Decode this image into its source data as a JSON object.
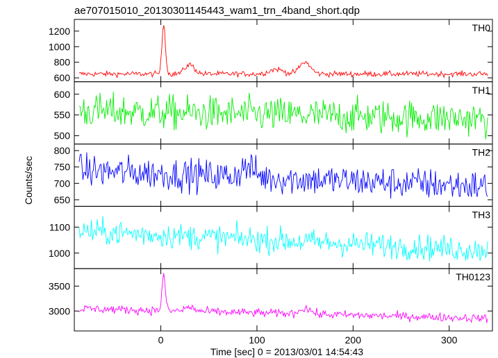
{
  "title": "ae707015010_20130301145443_wam1_trn_4band_short.qdp",
  "ylabel": "Counts/sec",
  "xlabel": "Time [sec] 0 = 2013/03/01 14:54:43",
  "colors": {
    "TH0": "#ff0000",
    "TH1": "#00ee00",
    "TH2": "#0000ff",
    "TH3": "#00ffff",
    "TH0123": "#ff00ff"
  },
  "chart_data": {
    "type": "line",
    "xlim": [
      -90,
      345
    ],
    "x_ticks": [
      0,
      100,
      200,
      300
    ],
    "x_tick_labels": [
      "0",
      "100",
      "200",
      "300"
    ],
    "legend": "top-right",
    "grid": false,
    "panels": [
      {
        "name": "TH0",
        "ylim": [
          550,
          1350
        ],
        "y_ticks": [
          600,
          800,
          1000,
          1200
        ],
        "y_tick_labels": [
          "600",
          "800",
          "1000",
          "1200"
        ],
        "baseline": 650,
        "noise": 25,
        "features": [
          {
            "center": 3,
            "width": 2.5,
            "amp": 650
          },
          {
            "center": 30,
            "width": 7,
            "amp": 120
          },
          {
            "center": 120,
            "width": 10,
            "amp": 60
          },
          {
            "center": 150,
            "width": 8,
            "amp": 150
          }
        ],
        "trend": 0,
        "series": [
          {
            "name": "TH0",
            "color_key": "TH0"
          }
        ]
      },
      {
        "name": "TH1",
        "ylim": [
          480,
          630
        ],
        "y_ticks": [
          500,
          550,
          600
        ],
        "y_tick_labels": [
          "500",
          "550",
          "600"
        ],
        "baseline": 560,
        "noise": 30,
        "features": [],
        "trend": -20,
        "series": [
          {
            "name": "TH1",
            "color_key": "TH1"
          }
        ]
      },
      {
        "name": "TH2",
        "ylim": [
          630,
          820
        ],
        "y_ticks": [
          650,
          700,
          750,
          800
        ],
        "y_tick_labels": [
          "650",
          "700",
          "750",
          "800"
        ],
        "baseline": 740,
        "noise": 35,
        "features": [
          {
            "center": 90,
            "width": 10,
            "amp": 30
          }
        ],
        "trend": -50,
        "series": [
          {
            "name": "TH2",
            "color_key": "TH2"
          }
        ]
      },
      {
        "name": "TH3",
        "ylim": [
          940,
          1180
        ],
        "y_ticks": [
          1000,
          1100
        ],
        "y_tick_labels": [
          "1000",
          "1100"
        ],
        "baseline": 1085,
        "noise": 35,
        "features": [],
        "trend": -75,
        "series": [
          {
            "name": "TH3",
            "color_key": "TH3"
          }
        ]
      },
      {
        "name": "TH0123",
        "ylim": [
          2600,
          3850
        ],
        "y_ticks": [
          3000,
          3500
        ],
        "y_tick_labels": [
          "3000",
          "3500"
        ],
        "baseline": 3050,
        "noise": 60,
        "features": [
          {
            "center": 3,
            "width": 2.5,
            "amp": 700
          },
          {
            "center": 30,
            "width": 7,
            "amp": 80
          },
          {
            "center": 150,
            "width": 8,
            "amp": 120
          }
        ],
        "trend": -200,
        "series": [
          {
            "name": "TH0123",
            "color_key": "TH0123"
          }
        ]
      }
    ]
  }
}
